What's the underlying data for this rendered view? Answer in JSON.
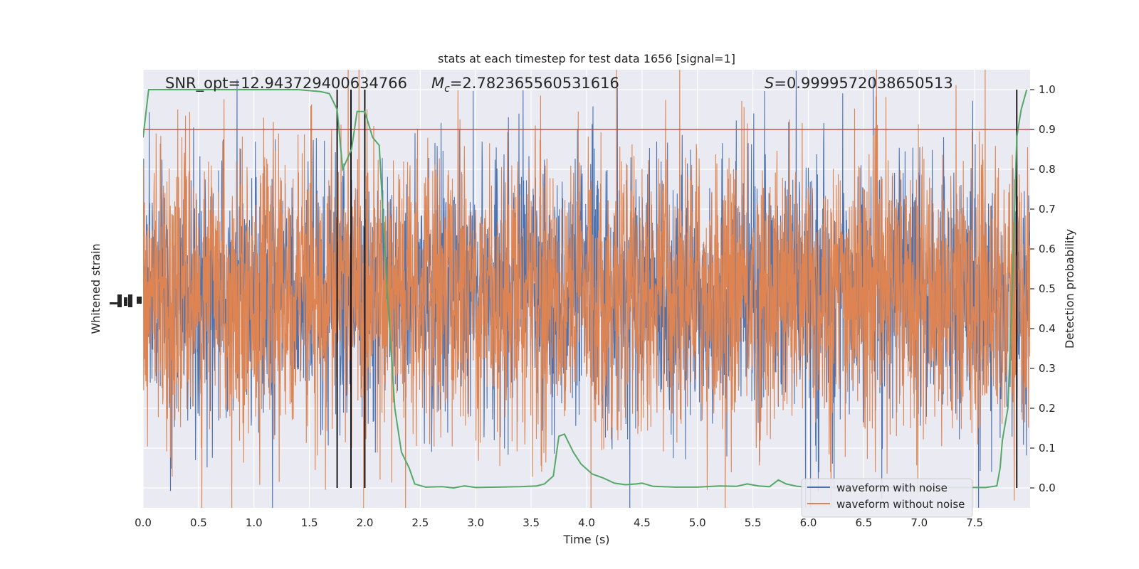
{
  "chart_data": {
    "type": "line",
    "title": "stats at each timestep for test data 1656 [signal=1]",
    "xlabel": "Time (s)",
    "ylabel_left": "Whitened strain",
    "ylabel_right": "Detection probability",
    "xlim": [
      0,
      8
    ],
    "ylim_right": [
      -0.05,
      1.05
    ],
    "x_ticks": [
      "0.0",
      "0.5",
      "1.0",
      "1.5",
      "2.0",
      "2.5",
      "3.0",
      "3.5",
      "4.0",
      "4.5",
      "5.0",
      "5.5",
      "6.0",
      "6.5",
      "7.0",
      "7.5"
    ],
    "y_ticks_right": [
      "0.0",
      "0.1",
      "0.2",
      "0.3",
      "0.4",
      "0.5",
      "0.6",
      "0.7",
      "0.8",
      "0.9",
      "1.0"
    ],
    "grid": true,
    "legend_position": "lower-right",
    "annotations": {
      "snr": "SNR_opt=12.943729400634766",
      "mc_symbol": "M",
      "mc_sub": "c",
      "mc_value": "=2.782365560531616",
      "s_symbol": "S",
      "s_value": "=0.9999572038650513"
    },
    "threshold": 0.9,
    "vertical_markers": [
      1.75,
      1.875,
      2.0,
      7.88
    ],
    "series": [
      {
        "name": "waveform with noise",
        "color": "#4c72b0"
      },
      {
        "name": "waveform without noise",
        "color": "#dd8452"
      }
    ],
    "detection_probability": {
      "color": "#55a868",
      "x": [
        0.0,
        0.05,
        0.1,
        1.4,
        1.6,
        1.68,
        1.75,
        1.8,
        1.88,
        1.93,
        2.0,
        2.07,
        2.13,
        2.2,
        2.27,
        2.33,
        2.4,
        2.45,
        2.55,
        2.7,
        2.8,
        2.9,
        3.0,
        3.2,
        3.4,
        3.55,
        3.62,
        3.7,
        3.75,
        3.8,
        3.88,
        3.95,
        4.05,
        4.15,
        4.25,
        4.35,
        4.45,
        4.5,
        4.6,
        4.8,
        5.0,
        5.2,
        5.35,
        5.45,
        5.55,
        5.65,
        5.73,
        5.8,
        5.9,
        6.0,
        6.2,
        6.4,
        6.6,
        6.8,
        7.0,
        7.2,
        7.4,
        7.6,
        7.7,
        7.73,
        7.75,
        7.8,
        7.84,
        7.88,
        7.92,
        7.97
      ],
      "y": [
        0.88,
        1.0,
        1.0,
        1.0,
        0.995,
        0.99,
        0.95,
        0.8,
        0.85,
        0.945,
        0.945,
        0.88,
        0.86,
        0.5,
        0.2,
        0.09,
        0.05,
        0.01,
        0.002,
        0.003,
        0.0,
        0.005,
        0.001,
        0.002,
        0.003,
        0.005,
        0.01,
        0.03,
        0.13,
        0.135,
        0.09,
        0.06,
        0.035,
        0.025,
        0.012,
        0.008,
        0.01,
        0.012,
        0.004,
        0.002,
        0.002,
        0.005,
        0.004,
        0.01,
        0.005,
        0.003,
        0.02,
        0.01,
        0.004,
        0.002,
        0.001,
        0.001,
        0.002,
        0.001,
        0.001,
        0.001,
        0.001,
        0.001,
        0.005,
        0.05,
        0.12,
        0.2,
        0.5,
        0.88,
        0.95,
        1.0
      ]
    },
    "colors": {
      "background": "#eaeaf2",
      "grid": "#ffffff",
      "threshold": "#c44e52",
      "marker": "#000000",
      "text": "#262626"
    }
  }
}
